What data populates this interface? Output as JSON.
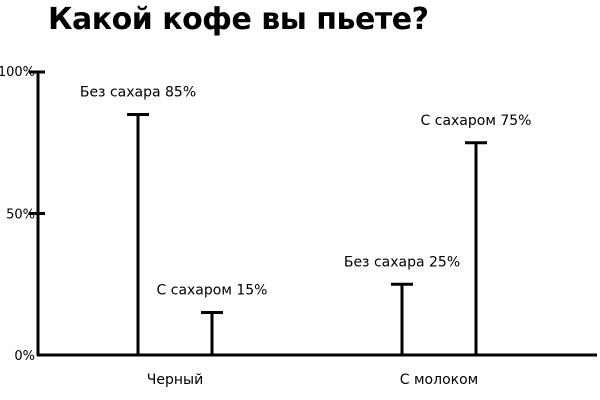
{
  "chart_data": {
    "type": "bar",
    "title": "Какой кофе вы пьете?",
    "categories": [
      "Черный",
      "С молоком"
    ],
    "bars": [
      {
        "category": "Черный",
        "label": "Без сахара 85%",
        "value": 85
      },
      {
        "category": "Черный",
        "label": "С сахаром 15%",
        "value": 15
      },
      {
        "category": "С молоком",
        "label": "Без сахара 25%",
        "value": 25
      },
      {
        "category": "С молоком",
        "label": "С сахаром 75%",
        "value": 75
      }
    ],
    "yticks": [
      {
        "value": 0,
        "label": "0%"
      },
      {
        "value": 50,
        "label": "50%"
      },
      {
        "value": 100,
        "label": "100%"
      }
    ],
    "ylim": [
      0,
      100
    ],
    "grid": false,
    "colors": {
      "line": "#000000"
    }
  }
}
